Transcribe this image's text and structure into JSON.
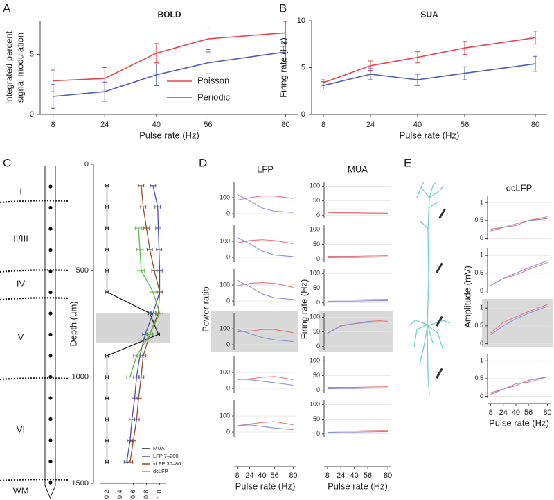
{
  "panel_labels": [
    "A",
    "B",
    "C",
    "D",
    "E"
  ],
  "cortical_layers": [
    "I",
    "II/III",
    "IV",
    "V",
    "VI",
    "WM"
  ],
  "chart_data": [
    {
      "type": "line",
      "title": "BOLD",
      "x_label": "Pulse rate (Hz)",
      "y_label": [
        "Integrated percent",
        "signal modulation"
      ],
      "x": [
        8,
        24,
        40,
        56,
        80
      ],
      "xlim": [
        4,
        84
      ],
      "xticks": [
        8,
        24,
        40,
        56,
        80
      ],
      "ylim": [
        0,
        7.8
      ],
      "yticks": [
        0,
        5
      ],
      "legend": "lower right",
      "series": [
        {
          "name": "Poisson",
          "color": "#e8434b",
          "values": [
            2.8,
            3.0,
            5.1,
            6.3,
            6.8
          ],
          "errors": [
            0.9,
            0.9,
            0.8,
            0.9,
            0.9
          ]
        },
        {
          "name": "Periodic",
          "color": "#4d5bb0",
          "values": [
            1.5,
            1.9,
            3.3,
            4.3,
            5.2
          ],
          "errors": [
            1.0,
            0.8,
            0.9,
            0.9,
            0.8
          ]
        }
      ]
    },
    {
      "type": "line",
      "title": "SUA",
      "x_label": "Pulse rate (Hz)",
      "y_label": "Firing rate (Hz)",
      "x": [
        8,
        24,
        40,
        56,
        80
      ],
      "xlim": [
        4,
        84
      ],
      "xticks": [
        8,
        24,
        40,
        56,
        80
      ],
      "ylim": [
        0,
        10
      ],
      "yticks": [
        0,
        5,
        10
      ],
      "series": [
        {
          "color": "#e8434b",
          "values": [
            3.4,
            5.2,
            6.1,
            7.1,
            8.2
          ],
          "errors": [
            0.3,
            0.5,
            0.6,
            0.7,
            0.7
          ]
        },
        {
          "color": "#4d5bb0",
          "values": [
            3.1,
            4.3,
            3.7,
            4.4,
            5.4
          ],
          "errors": [
            0.4,
            0.6,
            0.6,
            0.7,
            0.8
          ]
        }
      ]
    },
    {
      "type": "line",
      "orientation": "horizontal",
      "y_label": "Depth (µm)",
      "y_inverted": true,
      "y": [
        100,
        200,
        300,
        400,
        500,
        600,
        700,
        800,
        900,
        1000,
        1100,
        1200,
        1300,
        1400
      ],
      "ylim": [
        0,
        1500
      ],
      "yticks": [
        0,
        500,
        1000,
        1500
      ],
      "xlim": [
        0.1,
        1.1
      ],
      "xticks": [
        0.2,
        0.4,
        0.6,
        0.8,
        {
          "value": 1,
          "label": "1.0"
        }
      ],
      "highlight_ylim": [
        700,
        840
      ],
      "legend": "lower right",
      "series": [
        {
          "name": "MUA",
          "color": "#222222",
          "error": 0.02,
          "values": [
            0.2,
            0.2,
            0.2,
            0.2,
            0.2,
            0.2,
            0.85,
            0.98,
            0.2,
            0.2,
            0.2,
            0.2,
            0.2,
            0.2
          ]
        },
        {
          "name": "LFP 7–200",
          "color": "#4b4fa8",
          "error": 0.04,
          "values": [
            0.9,
            0.97,
            0.98,
            0.99,
            1.0,
            1.0,
            0.9,
            0.78,
            0.7,
            0.65,
            0.62,
            0.58,
            0.55,
            0.5
          ]
        },
        {
          "name": "γLFP 30–80",
          "color": "#8b4a2b",
          "error": 0.04,
          "values": [
            0.72,
            0.75,
            0.8,
            0.85,
            0.92,
            1.0,
            0.98,
            0.85,
            0.75,
            0.72,
            0.68,
            0.65,
            0.6,
            0.55
          ]
        },
        {
          "name": "dcLFP",
          "color": "#5ab84a",
          "error": 0.05,
          "values": [
            null,
            null,
            0.68,
            0.7,
            0.72,
            0.9,
            1.0,
            0.85,
            0.65,
            0.55,
            null,
            null,
            null,
            null
          ]
        }
      ]
    },
    {
      "type": "line",
      "title": "LFP",
      "x_label": "Pulse rate (Hz)",
      "y_label": "Power ratio",
      "x": [
        8,
        24,
        40,
        56,
        80
      ],
      "xlim": [
        4,
        84
      ],
      "xticks": [
        8,
        24,
        40,
        56,
        80
      ],
      "ylim": [
        -30,
        200
      ],
      "yticks": [
        0,
        100
      ],
      "panels": [
        {
          "series": [
            {
              "color": "#e8777d",
              "values": [
                85,
                100,
                110,
                110,
                95
              ]
            },
            {
              "color": "#8a90d4",
              "values": [
                120,
                80,
                35,
                15,
                8
              ]
            }
          ]
        },
        {
          "series": [
            {
              "color": "#e8777d",
              "values": [
                90,
                105,
                110,
                105,
                85
              ]
            },
            {
              "color": "#8a90d4",
              "values": [
                125,
                85,
                40,
                15,
                5
              ]
            }
          ]
        },
        {
          "series": [
            {
              "color": "#e8777d",
              "values": [
                95,
                110,
                115,
                110,
                85
              ]
            },
            {
              "color": "#8a90d4",
              "values": [
                130,
                90,
                45,
                20,
                10
              ]
            }
          ]
        },
        {
          "highlight": true,
          "series": [
            {
              "color": "#e8777d",
              "values": [
                80,
                85,
                95,
                95,
                75
              ]
            },
            {
              "color": "#8a90d4",
              "values": [
                95,
                70,
                45,
                30,
                20
              ]
            }
          ]
        },
        {
          "series": [
            {
              "color": "#e8777d",
              "values": [
                55,
                60,
                70,
                75,
                55
              ]
            },
            {
              "color": "#8a90d4",
              "values": [
                60,
                55,
                45,
                35,
                20
              ]
            }
          ]
        },
        {
          "series": [
            {
              "color": "#e8777d",
              "values": [
                40,
                50,
                60,
                65,
                45
              ]
            },
            {
              "color": "#8a90d4",
              "values": [
                40,
                45,
                35,
                25,
                15
              ]
            }
          ]
        }
      ]
    },
    {
      "type": "line",
      "title": "MUA",
      "x_label": "Pulse rate (Hz)",
      "y_label": "Firing rate (Hz)",
      "x": [
        8,
        24,
        40,
        56,
        80
      ],
      "xlim": [
        4,
        84
      ],
      "xticks": [
        8,
        24,
        40,
        56,
        80
      ],
      "ylim": [
        -10,
        115
      ],
      "yticks": [
        0,
        50,
        100
      ],
      "panels": [
        {
          "series": [
            {
              "color": "#e8777d",
              "values": [
                10,
                10,
                10,
                11,
                12
              ]
            },
            {
              "color": "#8a90d4",
              "values": [
                5,
                6,
                6,
                7,
                8
              ]
            }
          ]
        },
        {
          "series": [
            {
              "color": "#e8777d",
              "values": [
                10,
                10,
                10,
                11,
                12
              ]
            },
            {
              "color": "#8a90d4",
              "values": [
                5,
                6,
                6,
                7,
                8
              ]
            }
          ]
        },
        {
          "series": [
            {
              "color": "#e8777d",
              "values": [
                10,
                10,
                10,
                11,
                12
              ]
            },
            {
              "color": "#8a90d4",
              "values": [
                5,
                6,
                6,
                7,
                8
              ]
            }
          ]
        },
        {
          "highlight": true,
          "series": [
            {
              "color": "#e8777d",
              "values": [
                45,
                72,
                78,
                85,
                90
              ]
            },
            {
              "color": "#8a90d4",
              "values": [
                45,
                70,
                78,
                82,
                85
              ]
            }
          ]
        },
        {
          "series": [
            {
              "color": "#e8777d",
              "values": [
                10,
                10,
                10,
                11,
                12
              ]
            },
            {
              "color": "#8a90d4",
              "values": [
                5,
                6,
                6,
                7,
                8
              ]
            }
          ]
        },
        {
          "series": [
            {
              "color": "#e8777d",
              "values": [
                10,
                10,
                10,
                11,
                12
              ]
            },
            {
              "color": "#8a90d4",
              "values": [
                5,
                6,
                6,
                7,
                8
              ]
            }
          ]
        }
      ]
    },
    {
      "type": "line",
      "title": "dcLFP",
      "x_label": "Pulse rate (Hz)",
      "y_label": "Amplitude (mV)",
      "x": [
        8,
        24,
        40,
        56,
        80
      ],
      "xlim": [
        4,
        84
      ],
      "xticks": [
        8,
        24,
        40,
        56,
        80
      ],
      "ylim": [
        -0.05,
        1.2
      ],
      "yticks": [
        0,
        0.5,
        1
      ],
      "panels": [
        {
          "series": [
            {
              "color": "#e8777d",
              "values": [
                0.25,
                0.3,
                0.4,
                0.5,
                0.6
              ]
            },
            {
              "color": "#8a90d4",
              "values": [
                0.2,
                0.3,
                0.35,
                0.5,
                0.55
              ]
            }
          ]
        },
        {
          "series": [
            {
              "color": "#e8777d",
              "values": [
                0.15,
                0.35,
                0.45,
                0.6,
                0.8
              ]
            },
            {
              "color": "#8a90d4",
              "values": [
                0.15,
                0.35,
                0.5,
                0.65,
                0.85
              ]
            }
          ]
        },
        {
          "highlight": true,
          "series": [
            {
              "color": "#e8777d",
              "values": [
                0.3,
                0.6,
                0.75,
                0.9,
                1.1
              ]
            },
            {
              "color": "#8a90d4",
              "values": [
                0.25,
                0.5,
                0.7,
                0.85,
                1.05
              ]
            }
          ]
        },
        {
          "series": [
            {
              "color": "#e8777d",
              "values": [
                0.1,
                0.2,
                0.35,
                0.4,
                0.55
              ]
            },
            {
              "color": "#8a90d4",
              "values": [
                0.05,
                0.2,
                0.3,
                0.45,
                0.55
              ]
            }
          ]
        }
      ]
    }
  ]
}
